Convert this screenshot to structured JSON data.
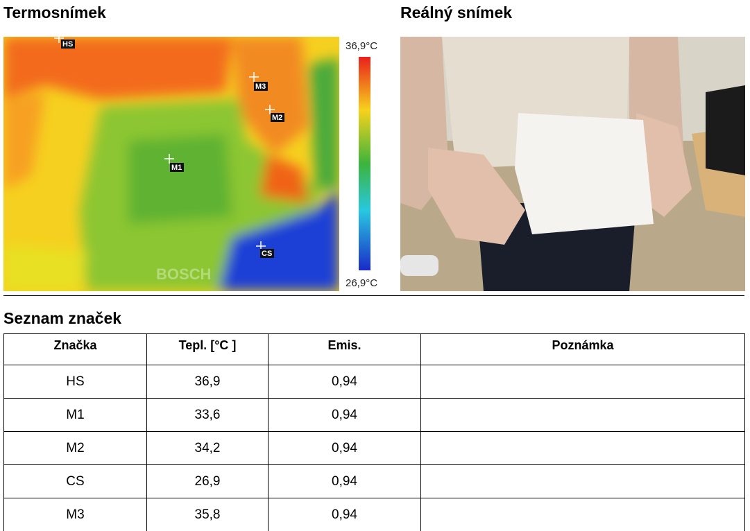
{
  "thermal": {
    "title": "Termosnímek",
    "scale_max": "36,9°C",
    "scale_min": "26,9°C",
    "watermark": "BOSCH",
    "markers": [
      "HS",
      "M3",
      "M2",
      "M1",
      "CS"
    ]
  },
  "photo": {
    "title": "Reálný snímek"
  },
  "table": {
    "title": "Seznam značek",
    "header": [
      "Značka",
      "Tepl. [°C ]",
      "Emis.",
      "Poznámka"
    ],
    "rows": [
      [
        "HS",
        "36,9",
        "0,94"
      ],
      [
        "M1",
        "33,6",
        "0,94"
      ],
      [
        "M2",
        "34,2",
        "0,94"
      ],
      [
        "CS",
        "26,9",
        "0,94"
      ],
      [
        "M3",
        "35,8",
        "0,94"
      ]
    ]
  }
}
